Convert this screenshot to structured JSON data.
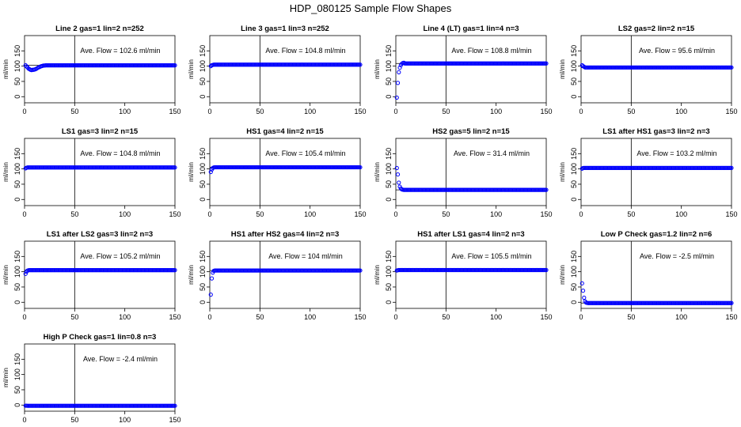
{
  "figure_title": "HDP_080125  Sample Flow Shapes",
  "ylabel": "ml/min",
  "xlim": [
    0,
    150
  ],
  "ylim": [
    -20,
    200
  ],
  "x_ticks": [
    0,
    50,
    100,
    150
  ],
  "y_ticks": [
    0,
    50,
    100,
    150
  ],
  "colors": {
    "points": "#0000ff",
    "axis": "#000000",
    "background": "#ffffff"
  },
  "chart_data": [
    {
      "type": "scatter",
      "title": "Line 2 gas=1 lin=2 n=252",
      "annotation": "Ave. Flow =  102.6  ml/min",
      "hline": 102.6,
      "vline": 50,
      "profile": "dip",
      "points": [
        [
          1,
          103
        ],
        [
          2,
          99
        ],
        [
          3,
          96
        ],
        [
          4,
          92
        ],
        [
          5,
          90
        ],
        [
          6,
          88
        ],
        [
          7,
          87
        ],
        [
          8,
          88
        ],
        [
          9,
          88
        ],
        [
          10,
          89
        ],
        [
          11,
          90
        ],
        [
          12,
          92
        ],
        [
          13,
          94
        ],
        [
          14,
          96
        ],
        [
          15,
          97
        ],
        [
          16,
          99
        ],
        [
          17,
          100
        ],
        [
          18,
          101
        ],
        [
          19,
          102
        ],
        [
          20,
          102
        ]
      ]
    },
    {
      "type": "scatter",
      "title": "Line 3 gas=1 lin=3 n=252",
      "annotation": "Ave. Flow =  104.8  ml/min",
      "hline": 104.8,
      "vline": 50,
      "profile": "flat",
      "points": [
        [
          1,
          100
        ],
        [
          2,
          103
        ],
        [
          3,
          104
        ]
      ]
    },
    {
      "type": "scatter",
      "title": "Line 4 (LT) gas=1 lin=4 n=3",
      "annotation": "Ave. Flow =  108.8  ml/min",
      "hline": 108.8,
      "vline": 50,
      "profile": "rise",
      "points": [
        [
          1,
          -3
        ],
        [
          2,
          45
        ],
        [
          3,
          80
        ],
        [
          4,
          95
        ],
        [
          5,
          103
        ],
        [
          6,
          108
        ],
        [
          7,
          110
        ],
        [
          8,
          111
        ]
      ]
    },
    {
      "type": "scatter",
      "title": "LS2 gas=2 lin=2 n=15",
      "annotation": "Ave. Flow =  95.6  ml/min",
      "hline": 95.6,
      "vline": 50,
      "profile": "flat",
      "points": [
        [
          1,
          103
        ],
        [
          2,
          100
        ],
        [
          3,
          98
        ]
      ]
    },
    {
      "type": "scatter",
      "title": "LS1 gas=3 lin=2 n=15",
      "annotation": "Ave. Flow =  104.8  ml/min",
      "hline": 104.8,
      "vline": 50,
      "profile": "flat",
      "points": [
        [
          1,
          102
        ],
        [
          2,
          104
        ]
      ]
    },
    {
      "type": "scatter",
      "title": "HS1 gas=4 lin=2 n=15",
      "annotation": "Ave. Flow =  105.4  ml/min",
      "hline": 105.4,
      "vline": 50,
      "profile": "rise",
      "points": [
        [
          1,
          90
        ],
        [
          2,
          98
        ],
        [
          3,
          103
        ],
        [
          4,
          105
        ]
      ]
    },
    {
      "type": "scatter",
      "title": "HS2 gas=5 lin=2 n=15",
      "annotation": "Ave. Flow =  31.4  ml/min",
      "hline": 31.4,
      "vline": 50,
      "profile": "drop",
      "points": [
        [
          1,
          103
        ],
        [
          2,
          82
        ],
        [
          3,
          55
        ],
        [
          4,
          42
        ],
        [
          5,
          36
        ],
        [
          6,
          33
        ],
        [
          7,
          32
        ]
      ]
    },
    {
      "type": "scatter",
      "title": "LS1 after HS1 gas=3 lin=2 n=3",
      "annotation": "Ave. Flow =  103.2  ml/min",
      "hline": 103.2,
      "vline": 50,
      "profile": "flat",
      "points": [
        [
          1,
          101
        ],
        [
          2,
          103
        ]
      ]
    },
    {
      "type": "scatter",
      "title": "LS1 after LS2 gas=3 lin=2 n=3",
      "annotation": "Ave. Flow =  105.2  ml/min",
      "hline": 105.2,
      "vline": 50,
      "profile": "rise",
      "points": [
        [
          1,
          93
        ],
        [
          2,
          100
        ],
        [
          3,
          104
        ],
        [
          4,
          105
        ]
      ]
    },
    {
      "type": "scatter",
      "title": "HS1 after HS2 gas=4 lin=2 n=3",
      "annotation": "Ave. Flow =  104  ml/min",
      "hline": 104,
      "vline": 50,
      "profile": "rise",
      "points": [
        [
          1,
          25
        ],
        [
          2,
          78
        ],
        [
          3,
          97
        ],
        [
          4,
          103
        ]
      ]
    },
    {
      "type": "scatter",
      "title": "HS1 after LS1 gas=4 lin=2 n=3",
      "annotation": "Ave. Flow =  105.5  ml/min",
      "hline": 105.5,
      "vline": 50,
      "profile": "flat",
      "points": [
        [
          1,
          104
        ],
        [
          2,
          105
        ]
      ]
    },
    {
      "type": "scatter",
      "title": "Low P Check gas=1.2 lin=2 n=6",
      "annotation": "Ave. Flow =  -2.5  ml/min",
      "hline": -2.5,
      "vline": 50,
      "profile": "drop",
      "points": [
        [
          1,
          62
        ],
        [
          2,
          38
        ],
        [
          3,
          15
        ],
        [
          4,
          3
        ],
        [
          5,
          -1
        ],
        [
          6,
          -2
        ]
      ]
    },
    {
      "type": "scatter",
      "title": "High P Check gas=1 lin=0.8 n=3",
      "annotation": "Ave. Flow =  -2.4  ml/min",
      "hline": -2.4,
      "vline": 50,
      "profile": "flat",
      "points": [
        [
          1,
          -2
        ],
        [
          2,
          -2
        ]
      ]
    }
  ]
}
